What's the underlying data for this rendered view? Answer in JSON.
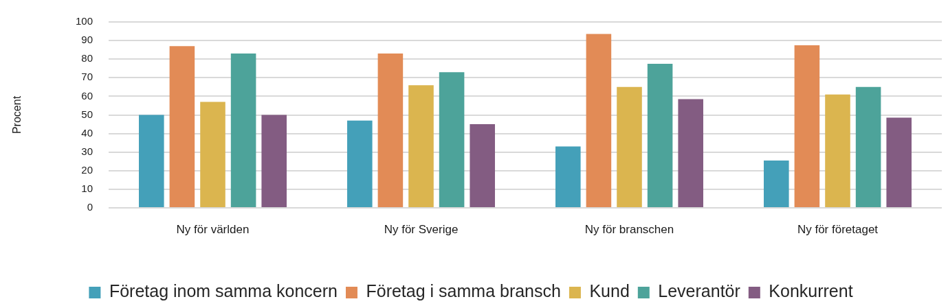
{
  "chart_data": {
    "type": "bar",
    "ylabel": "Procent",
    "categories": [
      "Ny för världen",
      "Ny för Sverige",
      "Ny för branschen",
      "Ny för företaget"
    ],
    "series": [
      {
        "name": "Företag inom samma koncern",
        "color": "#44a0b9",
        "values": [
          50,
          47,
          33,
          25.5
        ]
      },
      {
        "name": "Företag i samma bransch",
        "color": "#e28b56",
        "values": [
          87,
          83,
          93.5,
          87.5
        ]
      },
      {
        "name": "Kund",
        "color": "#dbb54f",
        "values": [
          57,
          66,
          65,
          61
        ]
      },
      {
        "name": "Leverantör",
        "color": "#4da39a",
        "values": [
          83,
          73,
          77.5,
          65
        ]
      },
      {
        "name": "Konkurrent",
        "color": "#835c82",
        "values": [
          50,
          45,
          58.5,
          48.5
        ]
      }
    ],
    "ylim": [
      0,
      100
    ],
    "yticks": [
      0,
      10,
      20,
      30,
      40,
      50,
      60,
      70,
      80,
      90,
      100
    ],
    "grid": "y",
    "legend": "bottom"
  }
}
